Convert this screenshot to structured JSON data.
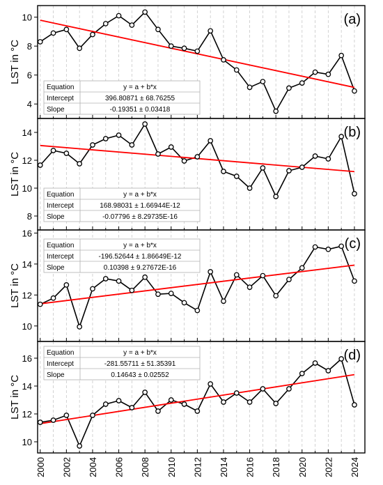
{
  "chart_data": [
    {
      "type": "line",
      "panel_label": "(a)",
      "ylabel": "LST in °C",
      "ylim": [
        3,
        10.8
      ],
      "yticks": [
        4,
        6,
        8,
        10
      ],
      "x": [
        2000,
        2001,
        2002,
        2003,
        2004,
        2005,
        2006,
        2007,
        2008,
        2009,
        2010,
        2011,
        2012,
        2013,
        2014,
        2015,
        2016,
        2017,
        2018,
        2019,
        2020,
        2021,
        2022,
        2023,
        2024
      ],
      "values": [
        8.3,
        8.9,
        9.15,
        7.85,
        8.8,
        9.55,
        10.1,
        9.45,
        10.35,
        9.15,
        8.0,
        7.85,
        7.65,
        9.05,
        7.05,
        6.35,
        5.15,
        5.55,
        3.5,
        5.1,
        5.45,
        6.2,
        6.05,
        7.35,
        4.9
      ],
      "fit": {
        "intercept": 396.80871,
        "slope": -0.19351
      },
      "table": {
        "rows": [
          [
            "Equation",
            "y = a + b*x"
          ],
          [
            "Intercept",
            "396.80871 ± 68.76255"
          ],
          [
            "Slope",
            "-0.19351 ± 0.03418"
          ]
        ]
      }
    },
    {
      "type": "line",
      "panel_label": "(b)",
      "ylabel": "LST in °C",
      "ylim": [
        7,
        15
      ],
      "yticks": [
        8,
        10,
        12,
        14
      ],
      "x": [
        2000,
        2001,
        2002,
        2003,
        2004,
        2005,
        2006,
        2007,
        2008,
        2009,
        2010,
        2011,
        2012,
        2013,
        2014,
        2015,
        2016,
        2017,
        2018,
        2019,
        2020,
        2021,
        2022,
        2023,
        2024
      ],
      "values": [
        11.65,
        12.7,
        12.5,
        11.75,
        13.1,
        13.55,
        13.8,
        13.1,
        14.6,
        12.45,
        12.95,
        11.95,
        12.25,
        13.4,
        11.2,
        10.85,
        10.0,
        11.45,
        9.4,
        11.25,
        11.5,
        12.3,
        12.1,
        13.7,
        9.6
      ],
      "fit": {
        "intercept": 168.98031,
        "slope": -0.07796
      },
      "table": {
        "rows": [
          [
            "Equation",
            "y = a + b*x"
          ],
          [
            "Intercept",
            "168.98031 ± 1.66944E-12"
          ],
          [
            "Slope",
            "-0.07796 ± 8.29735E-16"
          ]
        ]
      }
    },
    {
      "type": "line",
      "panel_label": "(c)",
      "ylabel": "LST in °C",
      "ylim": [
        9,
        16.2
      ],
      "yticks": [
        10,
        12,
        14,
        16
      ],
      "x": [
        2000,
        2001,
        2002,
        2003,
        2004,
        2005,
        2006,
        2007,
        2008,
        2009,
        2010,
        2011,
        2012,
        2013,
        2014,
        2015,
        2016,
        2017,
        2018,
        2019,
        2020,
        2021,
        2022,
        2023,
        2024
      ],
      "values": [
        11.4,
        11.8,
        12.65,
        9.95,
        12.4,
        13.05,
        12.9,
        12.3,
        13.15,
        12.05,
        12.1,
        11.5,
        11.0,
        13.5,
        11.6,
        13.3,
        12.5,
        13.25,
        11.95,
        13.0,
        13.75,
        15.1,
        14.95,
        15.15,
        12.9
      ],
      "fit": {
        "intercept": -196.52644,
        "slope": 0.10398
      },
      "table": {
        "rows": [
          [
            "Equation",
            "y = a + b*x"
          ],
          [
            "Intercept",
            "-196.52644 ± 1.86649E-12"
          ],
          [
            "Slope",
            "0.10398 ± 9.27672E-16"
          ]
        ]
      }
    },
    {
      "type": "line",
      "panel_label": "(d)",
      "ylabel": "LST in °C",
      "ylim": [
        9.2,
        17.2
      ],
      "yticks": [
        10,
        12,
        14,
        16
      ],
      "x": [
        2000,
        2001,
        2002,
        2003,
        2004,
        2005,
        2006,
        2007,
        2008,
        2009,
        2010,
        2011,
        2012,
        2013,
        2014,
        2015,
        2016,
        2017,
        2018,
        2019,
        2020,
        2021,
        2022,
        2023,
        2024
      ],
      "values": [
        11.4,
        11.55,
        11.9,
        9.7,
        11.9,
        12.7,
        12.95,
        12.45,
        13.55,
        12.2,
        13.0,
        12.7,
        12.2,
        14.15,
        12.85,
        13.5,
        12.85,
        13.8,
        12.75,
        13.8,
        14.9,
        15.65,
        15.1,
        15.95,
        12.65
      ],
      "fit": {
        "intercept": -281.55711,
        "slope": 0.14643
      },
      "table": {
        "rows": [
          [
            "Equation",
            "y = a + b*x"
          ],
          [
            "Intercept",
            "-281.55711 ± 51.35391"
          ],
          [
            "Slope",
            "0.14643 ± 0.02552"
          ]
        ]
      }
    }
  ],
  "x_ticks": [
    2000,
    2002,
    2004,
    2006,
    2008,
    2010,
    2012,
    2014,
    2016,
    2018,
    2020,
    2022,
    2024
  ],
  "colors": {
    "series": "#000000",
    "fit": "#ff0000",
    "grid": "#c8c8c8",
    "marker_fill": "#ffffff"
  }
}
